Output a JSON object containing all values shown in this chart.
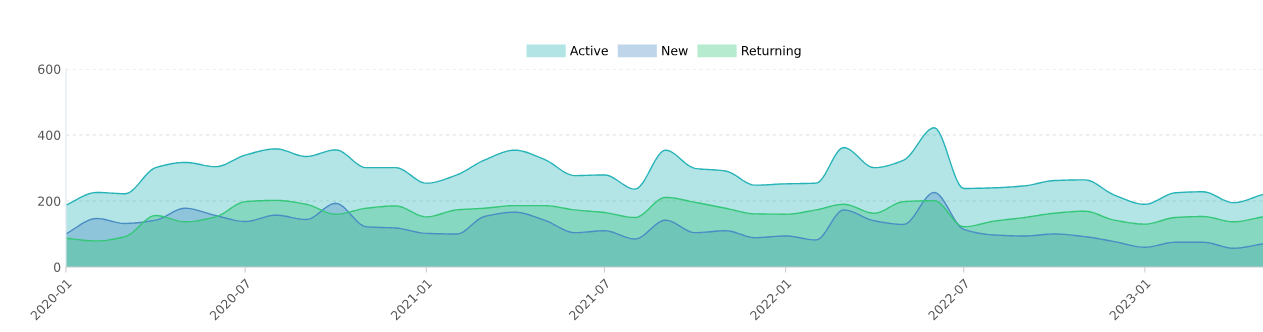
{
  "chart_data": {
    "type": "area",
    "x": [
      "2020-01",
      "2020-02",
      "2020-03",
      "2020-04",
      "2020-05",
      "2020-06",
      "2020-07",
      "2020-08",
      "2020-09",
      "2020-10",
      "2020-11",
      "2020-12",
      "2021-01",
      "2021-02",
      "2021-03",
      "2021-04",
      "2021-05",
      "2021-06",
      "2021-07",
      "2021-08",
      "2021-09",
      "2021-10",
      "2021-11",
      "2021-12",
      "2022-01",
      "2022-02",
      "2022-03",
      "2022-04",
      "2022-05",
      "2022-06",
      "2022-07",
      "2022-08",
      "2022-09",
      "2022-10",
      "2022-11",
      "2022-12",
      "2023-01",
      "2023-02",
      "2023-03",
      "2023-04",
      "2023-05"
    ],
    "series": [
      {
        "name": "Active",
        "color": "#26b3b7",
        "values": [
          188,
          226,
          222,
          301,
          317,
          304,
          339,
          358,
          335,
          355,
          301,
          301,
          254,
          279,
          324,
          354,
          326,
          277,
          279,
          236,
          354,
          299,
          291,
          248,
          252,
          254,
          362,
          301,
          324,
          422,
          238,
          240,
          246,
          262,
          264,
          218,
          190,
          225,
          228,
          195,
          220
        ]
      },
      {
        "name": "New",
        "color": "#4a8cc4",
        "values": [
          101,
          147,
          132,
          142,
          178,
          156,
          138,
          157,
          144,
          193,
          122,
          118,
          102,
          100,
          153,
          166,
          142,
          104,
          110,
          85,
          142,
          104,
          110,
          89,
          94,
          82,
          173,
          140,
          129,
          226,
          114,
          97,
          94,
          100,
          92,
          77,
          60,
          75,
          75,
          57,
          70
        ]
      },
      {
        "name": "Returning",
        "color": "#35c778",
        "values": [
          87,
          79,
          92,
          156,
          137,
          152,
          198,
          202,
          190,
          160,
          178,
          185,
          152,
          173,
          178,
          186,
          186,
          173,
          165,
          150,
          211,
          196,
          178,
          161,
          160,
          173,
          190,
          163,
          198,
          201,
          122,
          139,
          150,
          163,
          169,
          142,
          130,
          150,
          153,
          137,
          152
        ]
      }
    ],
    "xlim": [
      "2020-01",
      "2023-05"
    ],
    "xticks": [
      "2020-01",
      "2020-07",
      "2021-01",
      "2021-07",
      "2022-01",
      "2022-07",
      "2023-01"
    ],
    "ylim": [
      0,
      600
    ],
    "yticks": [
      0,
      200,
      400,
      600
    ],
    "grid": "y",
    "legend": "top"
  }
}
